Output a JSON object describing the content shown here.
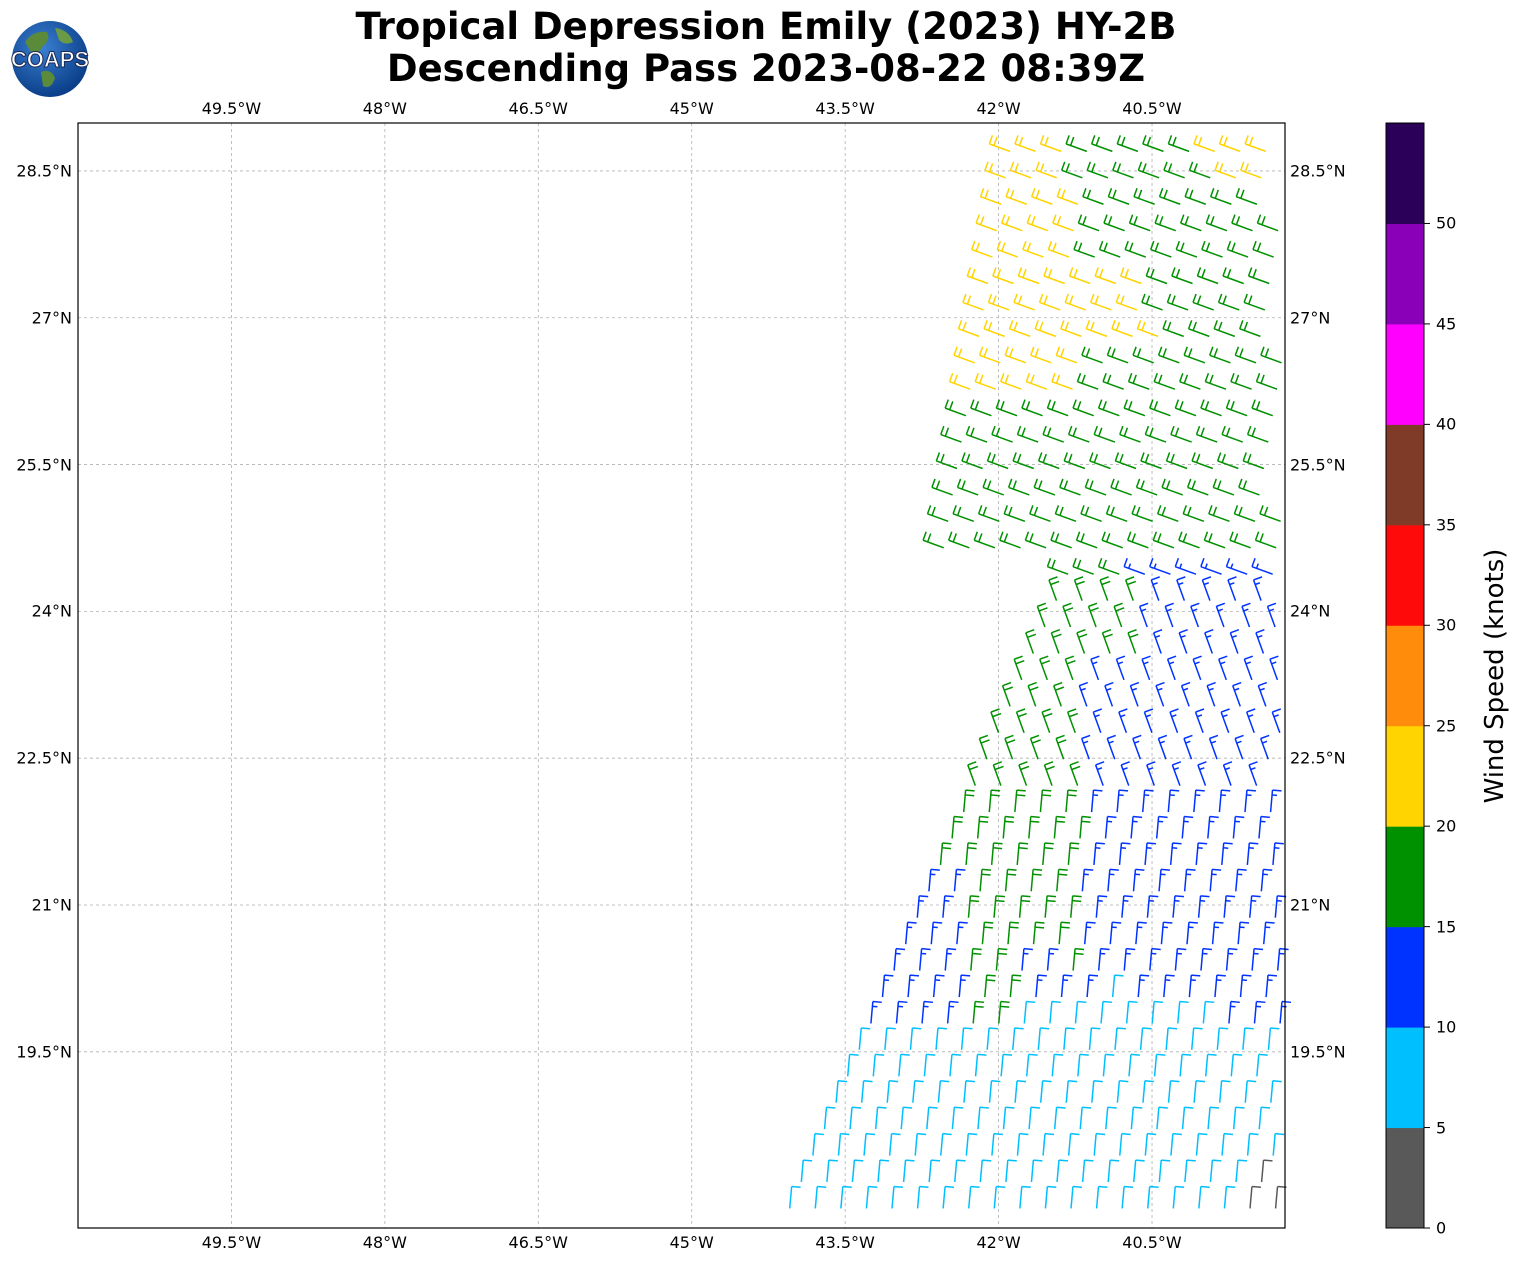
{
  "title": {
    "line1": "Tropical Depression Emily (2023) HY-2B",
    "line2": "Descending Pass 2023-08-22 08:39Z"
  },
  "logo": {
    "text": "COAPS"
  },
  "map": {
    "lon_range": [
      -51.0,
      -39.2
    ],
    "lat_range": [
      17.7,
      28.99
    ],
    "lon_ticks": [
      "49.5°W",
      "48°W",
      "46.5°W",
      "45°W",
      "43.5°W",
      "42°W",
      "40.5°W"
    ],
    "lat_ticks": [
      "28.5°N",
      "27°N",
      "25.5°N",
      "24°N",
      "22.5°N",
      "21°N",
      "19.5°N"
    ]
  },
  "colorbar": {
    "label": "Wind Speed (knots)",
    "ticks": [
      "0",
      "5",
      "10",
      "15",
      "20",
      "25",
      "30",
      "35",
      "40",
      "45",
      "50"
    ],
    "colors": [
      "#595959",
      "#00bfff",
      "#0033ff",
      "#009100",
      "#ffd400",
      "#ff8c0a",
      "#ff0a0a",
      "#803a28",
      "#ff00ff",
      "#8a00b8",
      "#2a0058"
    ]
  },
  "colors": {
    "gray": "#595959",
    "cyan": "#00bfff",
    "blue": "#0033ff",
    "green": "#009100",
    "yellow": "#ffd400"
  }
}
